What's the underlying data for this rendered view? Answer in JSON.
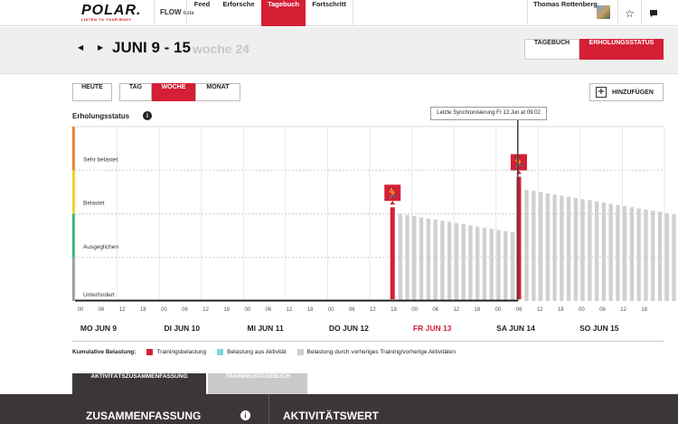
{
  "brand": {
    "logo_word": "POLAR.",
    "logo_tag": "LISTEN TO YOUR BODY",
    "flow": "FLOW",
    "flow_beta": "beta"
  },
  "nav": {
    "items": [
      {
        "label": "Feed",
        "active": false
      },
      {
        "label": "Erforsche",
        "active": false
      },
      {
        "label": "Tagebuch",
        "active": true
      },
      {
        "label": "Fortschritt",
        "active": false
      }
    ]
  },
  "user": {
    "name": "Thomas Rottenberg",
    "star_icon": "star-icon",
    "message_icon": "message-icon"
  },
  "header": {
    "period": "JUNI 9 - 15",
    "week": "woche 24",
    "prev_icon": "arrow-left-icon",
    "next_icon": "arrow-right-icon"
  },
  "view_tabs": {
    "tagebuch": "TAGEBUCH",
    "erholung": "ERHOLUNGSSTATUS"
  },
  "toolbar": {
    "heute": "HEUTE",
    "tag": "TAG",
    "woche": "WOCHE",
    "monat": "MONAT",
    "add": "HINZUFÜGEN"
  },
  "chart_title": "Erholungsstatus",
  "sync_note": "Letzte Synchronisierung Fr 13 Jun at 09:02",
  "chart_data": {
    "type": "bar",
    "title": "Erholungsstatus",
    "y_levels": [
      "Unterfordert",
      "Ausgeglichen",
      "Belastet",
      "Sehr belastet"
    ],
    "y_level_colors": [
      "#9a9a9a",
      "#2bb673",
      "#f2d31b",
      "#f07b22"
    ],
    "x_tick_labels": [
      "00",
      "06",
      "12",
      "18",
      "00",
      "06",
      "12",
      "18",
      "00",
      "06",
      "12",
      "18",
      "00",
      "06",
      "12",
      "18",
      "00",
      "06",
      "12",
      "18",
      "00",
      "06",
      "12",
      "18",
      "00",
      "06",
      "12",
      "18"
    ],
    "days": [
      "MO JUN 9",
      "DI JUN 10",
      "MI JUN 11",
      "DO JUN 12",
      "FR JUN 13",
      "SA JUN 14",
      "SO JUN 15"
    ],
    "today": "FR JUN 13",
    "series": [
      {
        "name": "Trainingsbelastung",
        "color": "#d51f35",
        "points": [
          {
            "day": 3,
            "hour": 18.5,
            "level": 2.15
          },
          {
            "day": 5,
            "hour": 6.5,
            "level": 2.85
          }
        ]
      },
      {
        "name": "Belastung durch vorheriges Training/vorherige Aktivitäten",
        "color": "#d0d0d0",
        "segments": [
          {
            "start_day": 3,
            "start_hour": 20,
            "start_level": 2.0,
            "end_day": 5,
            "end_hour": 6,
            "end_level": 1.55
          },
          {
            "start_day": 5,
            "start_hour": 8,
            "start_level": 2.55,
            "end_day": 7,
            "end_hour": 24,
            "end_level": 1.7
          }
        ]
      }
    ]
  },
  "legend": {
    "title": "Kumulative Belastung:",
    "items": [
      {
        "label": "Trainingsbelastung",
        "color": "#d51f35"
      },
      {
        "label": "Belastung aus Aktivität",
        "color": "#7fd3e0"
      },
      {
        "label": "Belastung durch vorheriges Training/vorherige Aktivitäten",
        "color": "#d0d0d0"
      }
    ]
  },
  "bottom_tabs": {
    "summary": "AKTIVITÄTSZUSAMMENFASSUNG",
    "log": "TRAININGSTAGEBUCH"
  },
  "bottom": {
    "zusammenfassung": "ZUSAMMENFASSUNG",
    "aktivitaetswert": "AKTIVITÄTSWERT"
  }
}
